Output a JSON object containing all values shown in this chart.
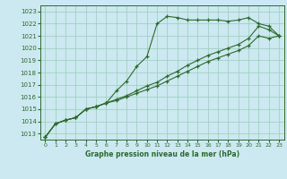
{
  "xlabel": "Graphe pression niveau de la mer (hPa)",
  "xlim": [
    -0.5,
    23.5
  ],
  "ylim": [
    1012.5,
    1023.5
  ],
  "yticks": [
    1013,
    1014,
    1015,
    1016,
    1017,
    1018,
    1019,
    1020,
    1021,
    1022,
    1023
  ],
  "xticks": [
    0,
    1,
    2,
    3,
    4,
    5,
    6,
    7,
    8,
    9,
    10,
    11,
    12,
    13,
    14,
    15,
    16,
    17,
    18,
    19,
    20,
    21,
    22,
    23
  ],
  "background_color": "#cce8f0",
  "grid_color": "#99ccbb",
  "line_color": "#2d6a2d",
  "line1": [
    1012.7,
    1013.8,
    1014.1,
    1014.3,
    1015.0,
    1015.2,
    1015.5,
    1016.5,
    1017.3,
    1018.5,
    1019.3,
    1022.0,
    1022.6,
    1022.5,
    1022.3,
    1022.3,
    1022.3,
    1022.3,
    1022.2,
    1022.3,
    1022.5,
    1022.0,
    1021.8,
    1021.0
  ],
  "line2": [
    1012.7,
    1013.8,
    1014.1,
    1014.3,
    1015.0,
    1015.2,
    1015.5,
    1015.8,
    1016.1,
    1016.5,
    1016.9,
    1017.2,
    1017.7,
    1018.1,
    1018.6,
    1019.0,
    1019.4,
    1019.7,
    1020.0,
    1020.3,
    1020.8,
    1021.8,
    1021.5,
    1021.0
  ],
  "line3": [
    1012.7,
    1013.8,
    1014.1,
    1014.3,
    1015.0,
    1015.2,
    1015.5,
    1015.7,
    1016.0,
    1016.3,
    1016.6,
    1016.9,
    1017.3,
    1017.7,
    1018.1,
    1018.5,
    1018.9,
    1019.2,
    1019.5,
    1019.8,
    1020.2,
    1021.0,
    1020.8,
    1021.0
  ]
}
